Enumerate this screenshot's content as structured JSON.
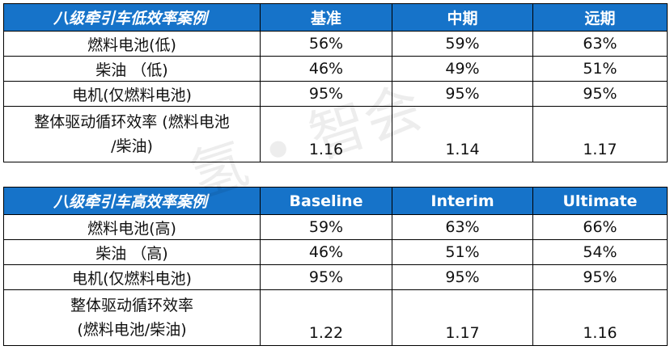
{
  "tables": [
    {
      "header": [
        "八级牵引车低效率案例",
        "基准",
        "中期",
        "远期"
      ],
      "rows": [
        [
          "燃料电池(低)",
          "56%",
          "59%",
          "63%"
        ],
        [
          "柴油 （低)",
          "46%",
          "49%",
          "51%"
        ],
        [
          "电机(仅燃料电池)",
          "95%",
          "95%",
          "95%"
        ]
      ],
      "last_row": {
        "label_line1": "整体驱动循环效率 (燃料电池",
        "label_line2": "/柴油)",
        "values": [
          "1.16",
          "1.14",
          "1.17"
        ]
      }
    },
    {
      "header": [
        "八级牵引车高效率案例",
        "Baseline",
        "Interim",
        "Ultimate"
      ],
      "rows": [
        [
          "燃料电池(高)",
          "59%",
          "63%",
          "66%"
        ],
        [
          "柴油 （高)",
          "46%",
          "51%",
          "54%"
        ],
        [
          "电机(仅燃料电池)",
          "95%",
          "95%",
          "95%"
        ]
      ],
      "last_row": {
        "label_line1": "整体驱动循环效率",
        "label_line2": "(燃料电池/柴油)",
        "values": [
          "1.22",
          "1.17",
          "1.16"
        ]
      }
    }
  ],
  "watermark": "氢 • 智会"
}
